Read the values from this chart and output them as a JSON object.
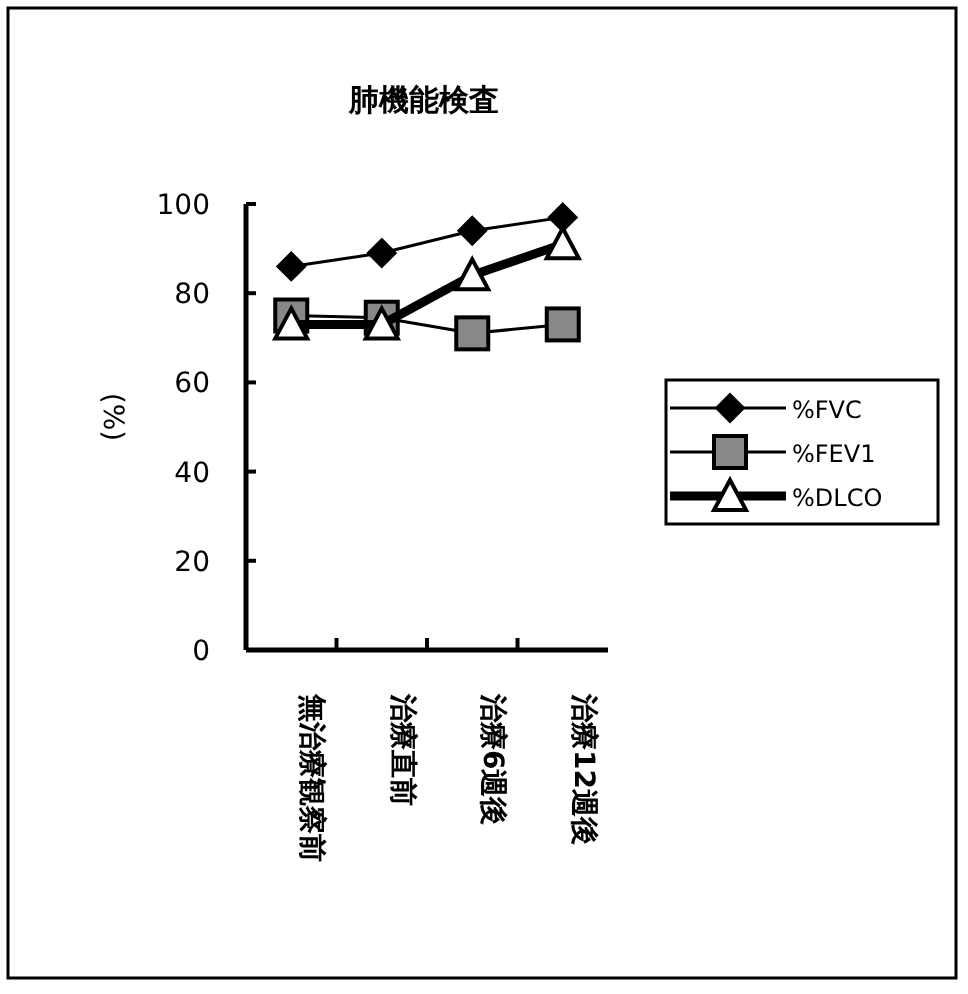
{
  "chart_data": {
    "type": "line",
    "title": "肺機能検査",
    "ylabel": "(%)",
    "categories": [
      "無治療観察前",
      "治療直前",
      "治療6週後",
      "治療12週後"
    ],
    "series": [
      {
        "name": "%FVC",
        "color": "#000000",
        "marker": "diamond",
        "values": [
          86,
          89,
          94,
          97
        ]
      },
      {
        "name": "%FEV1",
        "color": "#000000",
        "marker": "square",
        "values": [
          75,
          74.5,
          71,
          73
        ]
      },
      {
        "name": "%DLCO",
        "color": "#000000",
        "marker": "triangle",
        "values": [
          73,
          73,
          84,
          91
        ]
      }
    ],
    "ylim": [
      0,
      100
    ],
    "yticks": [
      0,
      20,
      40,
      60,
      80,
      100
    ],
    "legend": "right"
  }
}
